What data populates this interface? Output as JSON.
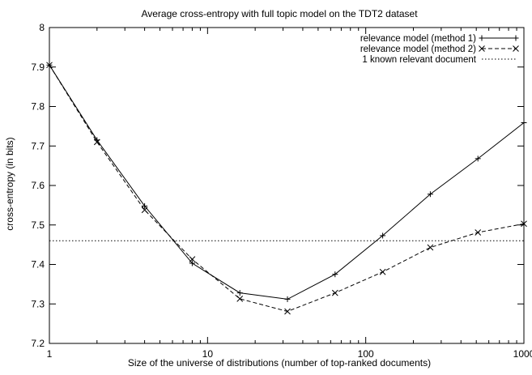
{
  "chart_data": {
    "type": "line",
    "title": "Average cross-entropy with full topic model on the TDT2 dataset",
    "xlabel": "Size of the universe of distributions (number of top-ranked documents)",
    "ylabel": "cross-entropy (in bits)",
    "xscale": "log",
    "xlim": [
      1,
      1000
    ],
    "ylim": [
      7.2,
      8
    ],
    "xticks": [
      1,
      10,
      100,
      1000
    ],
    "xtick_labels": [
      "1",
      "10",
      "100",
      "1000"
    ],
    "yticks": [
      7.2,
      7.3,
      7.4,
      7.5,
      7.6,
      7.7,
      7.8,
      7.9,
      8
    ],
    "ytick_labels": [
      "7.2",
      "7.3",
      "7.4",
      "7.5",
      "7.6",
      "7.7",
      "7.8",
      "7.9",
      "8"
    ],
    "grid": false,
    "legend_position": "top-right",
    "x": [
      1,
      2,
      4,
      8,
      16,
      32,
      64,
      128,
      256,
      512,
      1000
    ],
    "series": [
      {
        "name": "relevance model (method 1)",
        "style": "solid",
        "marker": "plus",
        "values": [
          7.905,
          7.715,
          7.548,
          7.403,
          7.328,
          7.312,
          7.375,
          7.473,
          7.578,
          7.668,
          7.759
        ]
      },
      {
        "name": "relevance model (method 2)",
        "style": "dashed",
        "marker": "cross",
        "values": [
          7.905,
          7.71,
          7.538,
          7.413,
          7.313,
          7.281,
          7.328,
          7.381,
          7.443,
          7.481,
          7.503
        ]
      },
      {
        "name": "1 known relevant document",
        "style": "dotted",
        "marker": "none",
        "constant": 7.46
      }
    ]
  }
}
